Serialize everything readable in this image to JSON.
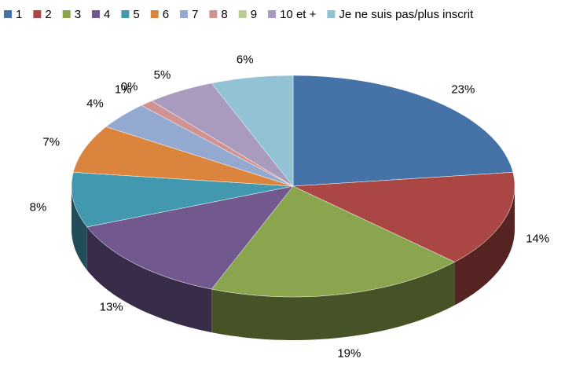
{
  "chart_data": {
    "type": "pie3d",
    "categories": [
      "1",
      "2",
      "3",
      "4",
      "5",
      "6",
      "7",
      "8",
      "9",
      "10 et +",
      "Je ne suis pas/plus inscrit"
    ],
    "values": [
      23,
      14,
      19,
      13,
      8,
      7,
      4,
      1,
      0,
      5,
      6
    ],
    "value_labels": [
      "23%",
      "14%",
      "19%",
      "13%",
      "8%",
      "7%",
      "4%",
      "1%",
      "0%",
      "5%",
      "6%"
    ],
    "colors": [
      "#4572a7",
      "#aa4643",
      "#89a54e",
      "#71588f",
      "#4198af",
      "#db843d",
      "#93a9cf",
      "#d19392",
      "#b9cd96",
      "#a99bbd",
      "#92c3d4"
    ],
    "legend": "top"
  }
}
